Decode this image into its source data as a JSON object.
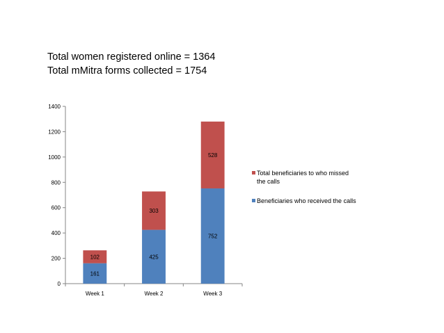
{
  "headlines": {
    "line1": "Total women registered  online = 1364",
    "line2": "Total mMitra forms  collected = 1754"
  },
  "colors": {
    "received": "#4f81bd",
    "missed": "#c0504d",
    "axis": "#868686"
  },
  "chart_data": {
    "type": "bar",
    "stacked": true,
    "categories": [
      "Week 1",
      "Week 2",
      "Week 3"
    ],
    "series": [
      {
        "name": "Beneficiaries who received the calls",
        "values": [
          161,
          425,
          752
        ],
        "color": "#4f81bd"
      },
      {
        "name": "Total beneficiaries to who missed the calls",
        "values": [
          102,
          303,
          528
        ],
        "color": "#c0504d"
      }
    ],
    "ylim": [
      0,
      1400
    ],
    "yticks": [
      0,
      200,
      400,
      600,
      800,
      1000,
      1200,
      1400
    ],
    "grid": false,
    "legend_position": "right",
    "title": "",
    "xlabel": "",
    "ylabel": ""
  },
  "legend": {
    "missed_label": "Total beneficiaries to who missed the calls",
    "received_label": "Beneficiaries who received the calls"
  }
}
